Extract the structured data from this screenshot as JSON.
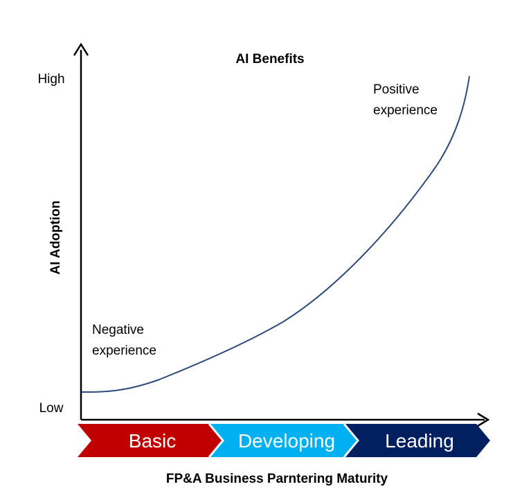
{
  "title": "AI Benefits",
  "y_axis": {
    "label": "AI Adoption",
    "tick_high": "High",
    "tick_low": "Low"
  },
  "x_axis": {
    "label": "FP&A Business Parntering Maturity"
  },
  "annotations": {
    "negative_line1": "Negative",
    "negative_line2": "experience",
    "positive_line1": "Positive",
    "positive_line2": "experience"
  },
  "stages": [
    {
      "label": "Basic",
      "color": "#c00000"
    },
    {
      "label": "Developing",
      "color": "#00b0f0"
    },
    {
      "label": "Leading",
      "color": "#002060"
    }
  ],
  "colors": {
    "axis": "#000000",
    "curve": "#2f4b7c"
  }
}
